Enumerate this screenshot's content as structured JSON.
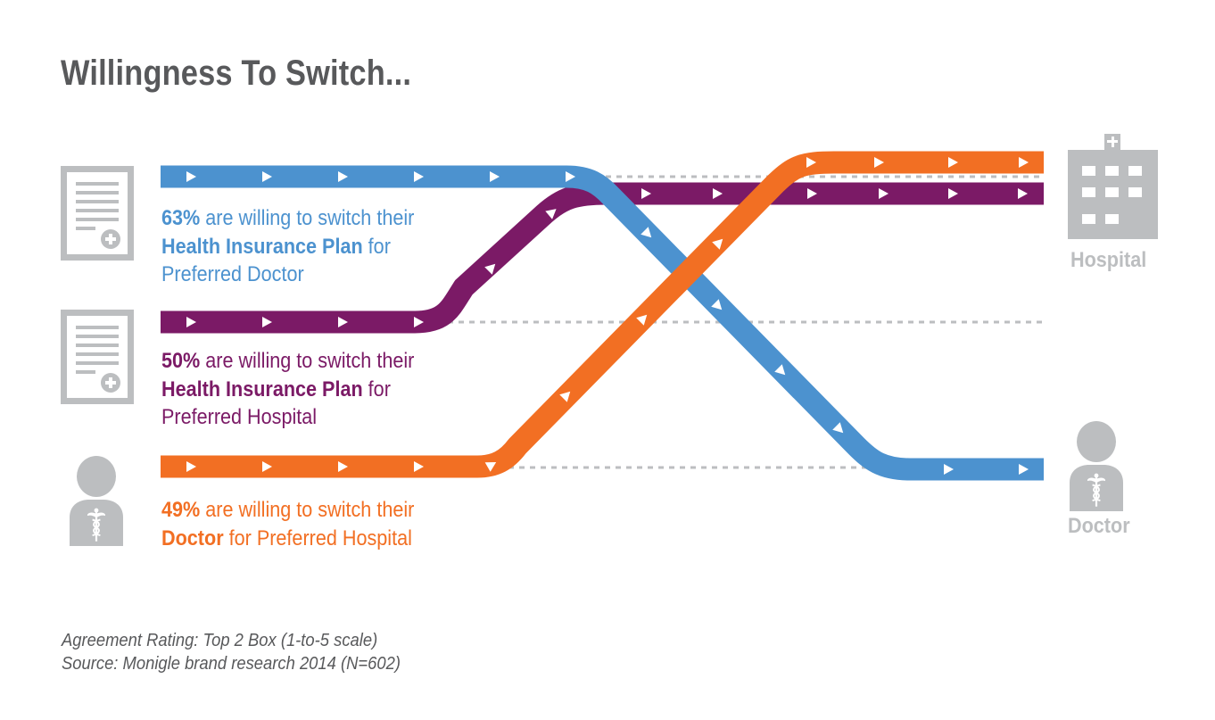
{
  "title": "Willingness To Switch...",
  "colors": {
    "blue": "#4c92cf",
    "purple": "#7b1a66",
    "orange": "#f26f23",
    "icon_gray": "#bcbec0",
    "text_gray": "#58595b"
  },
  "flows": [
    {
      "color": "blue",
      "percent": "63%",
      "text_mid": " are willing to switch their",
      "bold_2": "Health Insurance Plan",
      "text_2": " for",
      "line_3": "Preferred Doctor",
      "from_icon": "health-plan-document-icon",
      "to": "Doctor"
    },
    {
      "color": "purple",
      "percent": "50%",
      "text_mid": " are willing to switch their",
      "bold_2": "Health Insurance Plan",
      "text_2": " for",
      "line_3": "Preferred Hospital",
      "from_icon": "health-plan-document-icon",
      "to": "Hospital"
    },
    {
      "color": "orange",
      "percent": "49%",
      "text_mid": " are willing to switch their",
      "bold_2": "Doctor",
      "text_2": " for Preferred Hospital",
      "from_icon": "doctor-person-icon",
      "to": "Hospital"
    }
  ],
  "destinations": {
    "hospital": {
      "label": "Hospital",
      "icon": "hospital-building-icon"
    },
    "doctor": {
      "label": "Doctor",
      "icon": "doctor-person-icon"
    }
  },
  "footnotes": [
    "Agreement Rating: Top 2 Box (1-to-5 scale)",
    "Source: Monigle brand research 2014 (N=602)"
  ]
}
